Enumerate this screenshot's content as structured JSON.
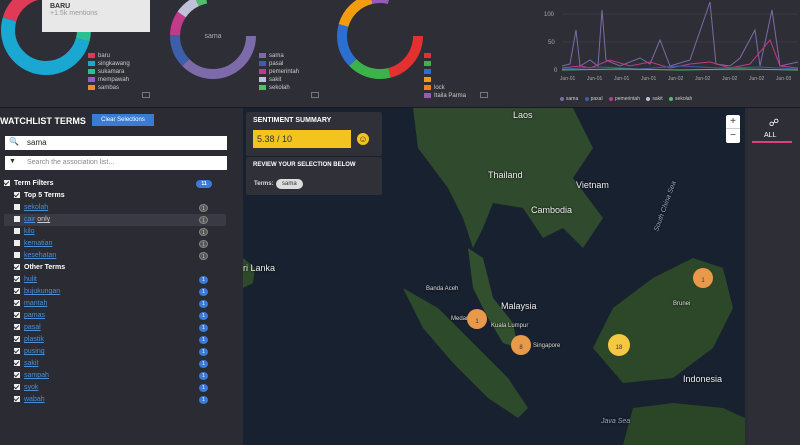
{
  "donut1": {
    "tooltip_title": "BARU",
    "tooltip_sub": "+1.5k mentions",
    "legend": [
      "baru",
      "singkawang",
      "sukamara",
      "mempawah",
      "sambas"
    ],
    "colors": [
      "#e03a58",
      "#1aa7d1",
      "#2bbf94",
      "#9b59d0",
      "#f08a2b"
    ]
  },
  "donut2": {
    "center_label": "sama",
    "legend": [
      "sama",
      "pasal",
      "pemerintah",
      "sakit",
      "sekolah"
    ],
    "colors": [
      "#7d6aa8",
      "#3d5ea8",
      "#c23a8a",
      "#c0c0d8",
      "#4fbf6a"
    ]
  },
  "donut3": {
    "legend": [
      "",
      "",
      "",
      "",
      "lock",
      "Itaila Parma"
    ],
    "colors": [
      "#e33030",
      "#3bb34a",
      "#2d6fd1",
      "#f39c12",
      "#ff7f0e",
      "#9b59b6"
    ]
  },
  "line_chart": {
    "y_ticks": [
      "100",
      "50",
      "0"
    ],
    "x_ticks": [
      "Jun-01",
      "Jun-01",
      "Jun-01",
      "Jun-01",
      "Jun-02",
      "Jun-02",
      "Jun-02",
      "Jun-02",
      "Jun-03"
    ],
    "legend": [
      "sama",
      "pasal",
      "pemerintah",
      "sakit",
      "sekolah"
    ],
    "colors": [
      "#7d6aa8",
      "#3d5ea8",
      "#c23a8a",
      "#c0c0d8",
      "#4fbf6a"
    ]
  },
  "watchlist": {
    "title": "WATCHLIST TERMS",
    "clear_label": "Clear Selections",
    "search_value": "sama",
    "filter_placeholder": "Search the association list...",
    "term_filters_label": "Term Filters",
    "term_filters_count": "11",
    "top5_label": "Top 5 Terms",
    "top5": [
      {
        "label": "sekolah",
        "count": "1"
      },
      {
        "label": "cair",
        "count": "1",
        "only": "only"
      },
      {
        "label": "kilo",
        "count": "1"
      },
      {
        "label": "kematian",
        "count": "1"
      },
      {
        "label": "kesehatan",
        "count": "1"
      }
    ],
    "other_label": "Other Terms",
    "other": [
      {
        "label": "hulit",
        "count": "1"
      },
      {
        "label": "bujukungan",
        "count": "1"
      },
      {
        "label": "mantah",
        "count": "1"
      },
      {
        "label": "pamas",
        "count": "1"
      },
      {
        "label": "pasal",
        "count": "1"
      },
      {
        "label": "plastik",
        "count": "1"
      },
      {
        "label": "pusing",
        "count": "1"
      },
      {
        "label": "sakit",
        "count": "1"
      },
      {
        "label": "sampah",
        "count": "1"
      },
      {
        "label": "syok",
        "count": "1"
      },
      {
        "label": "wabah",
        "count": "1"
      }
    ]
  },
  "sentiment": {
    "title": "SENTIMENT SUMMARY",
    "value": "5.38 / 10",
    "review_title": "REVIEW YOUR SELECTION BELOW",
    "terms_key": "Terms:",
    "chip": "sama"
  },
  "map": {
    "labels": {
      "laos": "Laos",
      "thailand": "Thailand",
      "vietnam": "Vietnam",
      "cambodia": "Cambodia",
      "malaysia": "Malaysia",
      "indonesia": "Indonesia",
      "sri_lanka": "ri Lanka",
      "brunei": "Brunei",
      "kuala_lumpur": "Kuala Lumpur",
      "singapore": "Singapore",
      "banda_aceh": "Banda Aceh",
      "medan": "Medan",
      "south_china_sea": "South China Sea",
      "java_sea": "Java Sea"
    },
    "clusters": [
      {
        "count": "1"
      },
      {
        "count": "8"
      },
      {
        "count": "18"
      },
      {
        "count": "1"
      }
    ],
    "zoom_in": "+",
    "zoom_out": "−"
  },
  "right_panel": {
    "share_icon": "share-icon",
    "all_label": "ALL"
  }
}
